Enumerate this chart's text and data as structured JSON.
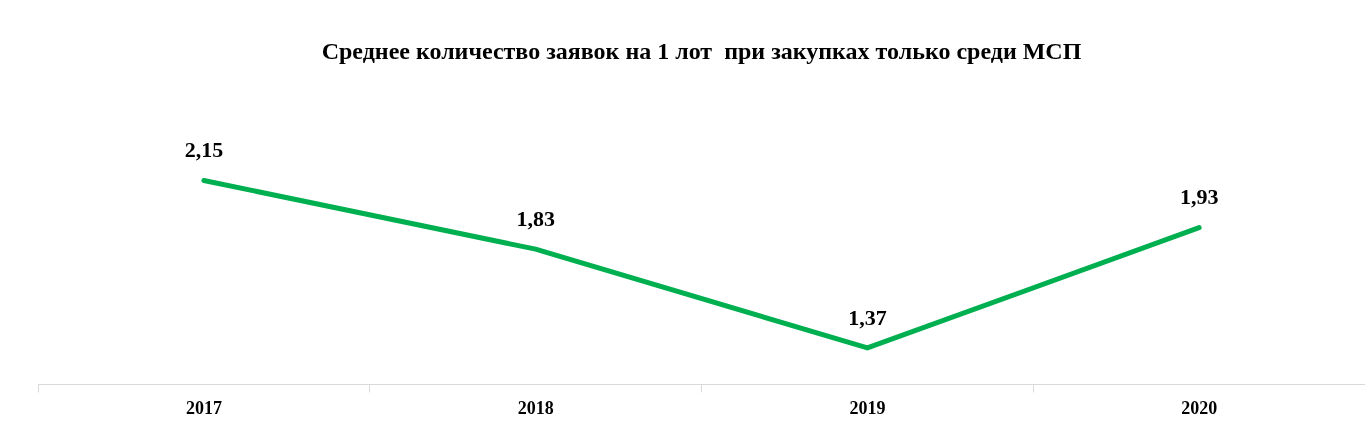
{
  "chart_data": {
    "type": "line",
    "title": "Среднее количество заявок на 1 лот  при закупках только среди МСП",
    "categories": [
      "2017",
      "2018",
      "2019",
      "2020"
    ],
    "series": [
      {
        "color": "#00b050",
        "values": [
          2.15,
          1.83,
          1.37,
          1.93
        ],
        "value_labels": [
          "2,15",
          "1,83",
          "1,37",
          "1,93"
        ]
      }
    ],
    "tick_labels": "x",
    "grid": false,
    "legend": false,
    "marker": "none",
    "line_style": "solid"
  }
}
